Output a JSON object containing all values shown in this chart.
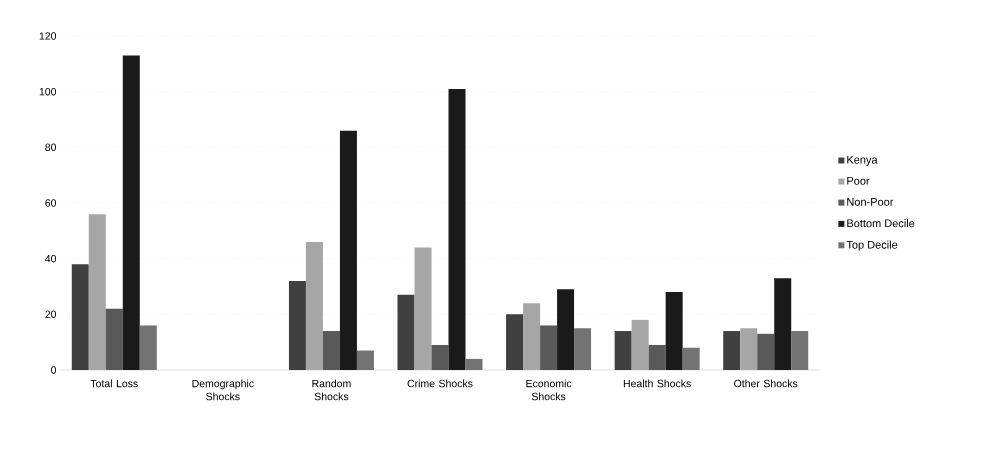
{
  "chart_data": {
    "type": "bar",
    "categories": [
      "Total Loss",
      "Demographic Shocks",
      "Random Shocks",
      "Crime Shocks",
      "Economic Shocks",
      "Health Shocks",
      "Other Shocks"
    ],
    "series": [
      {
        "name": "Kenya",
        "color": "#404040",
        "values": [
          38,
          0,
          32,
          27,
          20,
          14,
          14
        ]
      },
      {
        "name": "Poor",
        "color": "#a6a6a6",
        "values": [
          56,
          0,
          46,
          44,
          24,
          18,
          15
        ]
      },
      {
        "name": "Non-Poor",
        "color": "#595959",
        "values": [
          22,
          0,
          14,
          9,
          16,
          9,
          13
        ]
      },
      {
        "name": "Bottom Decile",
        "color": "#1a1a1a",
        "values": [
          113,
          0,
          86,
          101,
          29,
          28,
          33
        ]
      },
      {
        "name": "Top Decile",
        "color": "#737373",
        "values": [
          16,
          0,
          7,
          4,
          15,
          8,
          14
        ]
      }
    ],
    "ylim": [
      0,
      120
    ],
    "yticks": [
      0,
      20,
      40,
      60,
      80,
      100,
      120
    ],
    "grid": "y",
    "legend": "right"
  }
}
